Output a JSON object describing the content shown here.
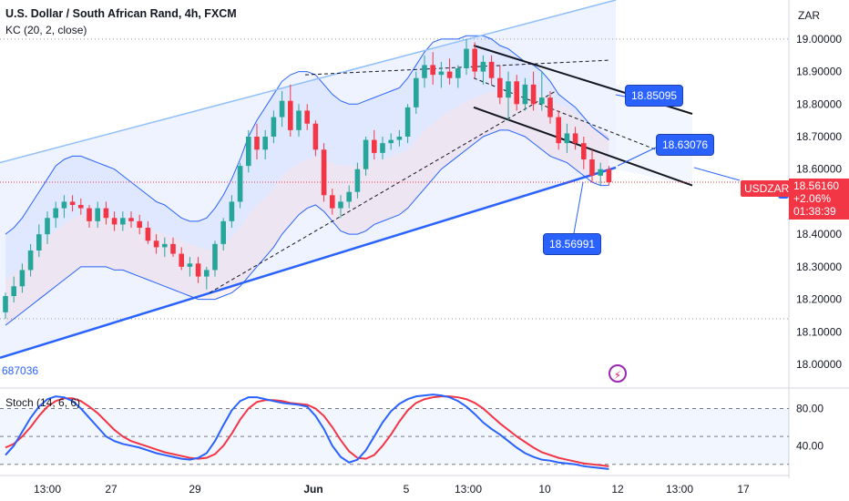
{
  "header": {
    "title": "U.S. Dollar / South African Rand, 4h, FXCM",
    "indicator": "KC (20, 2, close)",
    "currency": "ZAR",
    "left_code": "687036"
  },
  "stoch": {
    "label": "Stoch (14, 6, 6)"
  },
  "callouts": [
    {
      "text": "18.85095"
    },
    {
      "text": "18.63076"
    },
    {
      "text": "18.56991"
    }
  ],
  "price_tag": {
    "symbol": "USDZAR",
    "price": "18.56160",
    "change": "+2.06%",
    "countdown": "01:38:39"
  },
  "icons": {
    "alert": "lightning-bolt-icon"
  },
  "colors": {
    "up": "#26a69a",
    "down": "#f23645",
    "channel": "#2962ff",
    "stoch_k": "#2962ff",
    "stoch_d": "#f23645"
  },
  "chart_data": {
    "type": "candlestick",
    "y_ticks": [
      "19.00000",
      "18.90000",
      "18.80000",
      "18.70000",
      "18.60000",
      "18.40000",
      "18.30000",
      "18.20000",
      "18.10000",
      "18.00000"
    ],
    "ylim": [
      17.93,
      19.12
    ],
    "stoch_ticks": [
      "80.00",
      "40.00"
    ],
    "stoch_ylim": [
      10,
      100
    ],
    "x_ticks": [
      "13:00",
      "27",
      "29",
      "Jun",
      "5",
      "13:00",
      "10",
      "12",
      "13:00",
      "17"
    ],
    "candles": [
      {
        "o": 18.16,
        "h": 18.22,
        "l": 18.14,
        "c": 18.21
      },
      {
        "o": 18.21,
        "h": 18.27,
        "l": 18.19,
        "c": 18.24
      },
      {
        "o": 18.24,
        "h": 18.31,
        "l": 18.22,
        "c": 18.29
      },
      {
        "o": 18.29,
        "h": 18.37,
        "l": 18.27,
        "c": 18.35
      },
      {
        "o": 18.35,
        "h": 18.43,
        "l": 18.33,
        "c": 18.4
      },
      {
        "o": 18.4,
        "h": 18.47,
        "l": 18.37,
        "c": 18.45
      },
      {
        "o": 18.45,
        "h": 18.5,
        "l": 18.42,
        "c": 18.48
      },
      {
        "o": 18.48,
        "h": 18.52,
        "l": 18.45,
        "c": 18.5
      },
      {
        "o": 18.5,
        "h": 18.52,
        "l": 18.47,
        "c": 18.49
      },
      {
        "o": 18.49,
        "h": 18.51,
        "l": 18.46,
        "c": 18.48
      },
      {
        "o": 18.48,
        "h": 18.49,
        "l": 18.42,
        "c": 18.44
      },
      {
        "o": 18.44,
        "h": 18.5,
        "l": 18.42,
        "c": 18.48
      },
      {
        "o": 18.48,
        "h": 18.5,
        "l": 18.43,
        "c": 18.45
      },
      {
        "o": 18.45,
        "h": 18.47,
        "l": 18.41,
        "c": 18.43
      },
      {
        "o": 18.43,
        "h": 18.47,
        "l": 18.41,
        "c": 18.45
      },
      {
        "o": 18.45,
        "h": 18.47,
        "l": 18.42,
        "c": 18.44
      },
      {
        "o": 18.44,
        "h": 18.46,
        "l": 18.4,
        "c": 18.42
      },
      {
        "o": 18.42,
        "h": 18.44,
        "l": 18.37,
        "c": 18.38
      },
      {
        "o": 18.38,
        "h": 18.4,
        "l": 18.34,
        "c": 18.36
      },
      {
        "o": 18.36,
        "h": 18.39,
        "l": 18.33,
        "c": 18.37
      },
      {
        "o": 18.37,
        "h": 18.39,
        "l": 18.33,
        "c": 18.34
      },
      {
        "o": 18.34,
        "h": 18.36,
        "l": 18.29,
        "c": 18.3
      },
      {
        "o": 18.3,
        "h": 18.33,
        "l": 18.27,
        "c": 18.31
      },
      {
        "o": 18.31,
        "h": 18.33,
        "l": 18.25,
        "c": 18.27
      },
      {
        "o": 18.27,
        "h": 18.3,
        "l": 18.23,
        "c": 18.29
      },
      {
        "o": 18.29,
        "h": 18.38,
        "l": 18.27,
        "c": 18.37
      },
      {
        "o": 18.37,
        "h": 18.45,
        "l": 18.35,
        "c": 18.44
      },
      {
        "o": 18.44,
        "h": 18.52,
        "l": 18.42,
        "c": 18.5
      },
      {
        "o": 18.5,
        "h": 18.62,
        "l": 18.48,
        "c": 18.61
      },
      {
        "o": 18.61,
        "h": 18.72,
        "l": 18.59,
        "c": 18.7
      },
      {
        "o": 18.7,
        "h": 18.74,
        "l": 18.63,
        "c": 18.66
      },
      {
        "o": 18.66,
        "h": 18.72,
        "l": 18.63,
        "c": 18.7
      },
      {
        "o": 18.7,
        "h": 18.78,
        "l": 18.68,
        "c": 18.76
      },
      {
        "o": 18.76,
        "h": 18.84,
        "l": 18.73,
        "c": 18.81
      },
      {
        "o": 18.81,
        "h": 18.86,
        "l": 18.7,
        "c": 18.72
      },
      {
        "o": 18.72,
        "h": 18.8,
        "l": 18.7,
        "c": 18.78
      },
      {
        "o": 18.78,
        "h": 18.8,
        "l": 18.72,
        "c": 18.74
      },
      {
        "o": 18.74,
        "h": 18.75,
        "l": 18.64,
        "c": 18.66
      },
      {
        "o": 18.66,
        "h": 18.68,
        "l": 18.5,
        "c": 18.52
      },
      {
        "o": 18.52,
        "h": 18.54,
        "l": 18.46,
        "c": 18.48
      },
      {
        "o": 18.48,
        "h": 18.52,
        "l": 18.45,
        "c": 18.5
      },
      {
        "o": 18.5,
        "h": 18.55,
        "l": 18.48,
        "c": 18.53
      },
      {
        "o": 18.53,
        "h": 18.62,
        "l": 18.51,
        "c": 18.6
      },
      {
        "o": 18.6,
        "h": 18.7,
        "l": 18.58,
        "c": 18.69
      },
      {
        "o": 18.69,
        "h": 18.72,
        "l": 18.63,
        "c": 18.65
      },
      {
        "o": 18.65,
        "h": 18.7,
        "l": 18.63,
        "c": 18.68
      },
      {
        "o": 18.68,
        "h": 18.71,
        "l": 18.66,
        "c": 18.69
      },
      {
        "o": 18.69,
        "h": 18.72,
        "l": 18.67,
        "c": 18.7
      },
      {
        "o": 18.7,
        "h": 18.8,
        "l": 18.68,
        "c": 18.79
      },
      {
        "o": 18.79,
        "h": 18.9,
        "l": 18.77,
        "c": 18.88
      },
      {
        "o": 18.88,
        "h": 18.95,
        "l": 18.85,
        "c": 18.92
      },
      {
        "o": 18.92,
        "h": 18.96,
        "l": 18.86,
        "c": 18.89
      },
      {
        "o": 18.89,
        "h": 18.93,
        "l": 18.85,
        "c": 18.9
      },
      {
        "o": 18.9,
        "h": 18.94,
        "l": 18.86,
        "c": 18.88
      },
      {
        "o": 18.88,
        "h": 18.92,
        "l": 18.85,
        "c": 18.91
      },
      {
        "o": 18.91,
        "h": 19.0,
        "l": 18.89,
        "c": 18.97
      },
      {
        "o": 18.97,
        "h": 18.99,
        "l": 18.88,
        "c": 18.9
      },
      {
        "o": 18.9,
        "h": 18.95,
        "l": 18.86,
        "c": 18.93
      },
      {
        "o": 18.93,
        "h": 18.95,
        "l": 18.86,
        "c": 18.88
      },
      {
        "o": 18.88,
        "h": 18.92,
        "l": 18.8,
        "c": 18.82
      },
      {
        "o": 18.82,
        "h": 18.9,
        "l": 18.75,
        "c": 18.87
      },
      {
        "o": 18.87,
        "h": 18.89,
        "l": 18.78,
        "c": 18.8
      },
      {
        "o": 18.8,
        "h": 18.88,
        "l": 18.78,
        "c": 18.86
      },
      {
        "o": 18.86,
        "h": 18.9,
        "l": 18.78,
        "c": 18.8
      },
      {
        "o": 18.8,
        "h": 18.9,
        "l": 18.78,
        "c": 18.82
      },
      {
        "o": 18.82,
        "h": 18.84,
        "l": 18.74,
        "c": 18.76
      },
      {
        "o": 18.76,
        "h": 18.78,
        "l": 18.66,
        "c": 18.68
      },
      {
        "o": 18.68,
        "h": 18.74,
        "l": 18.65,
        "c": 18.71
      },
      {
        "o": 18.71,
        "h": 18.73,
        "l": 18.66,
        "c": 18.68
      },
      {
        "o": 18.68,
        "h": 18.7,
        "l": 18.6,
        "c": 18.63
      },
      {
        "o": 18.63,
        "h": 18.66,
        "l": 18.56,
        "c": 18.58
      },
      {
        "o": 18.58,
        "h": 18.62,
        "l": 18.55,
        "c": 18.6
      },
      {
        "o": 18.6,
        "h": 18.61,
        "l": 18.55,
        "c": 18.56
      }
    ],
    "kc_upper": [
      18.4,
      18.42,
      18.45,
      18.49,
      18.53,
      18.57,
      18.61,
      18.63,
      18.64,
      18.64,
      18.63,
      18.62,
      18.61,
      18.6,
      18.58,
      18.56,
      18.54,
      18.52,
      18.5,
      18.49,
      18.47,
      18.45,
      18.44,
      18.44,
      18.45,
      18.48,
      18.52,
      18.57,
      18.63,
      18.7,
      18.75,
      18.79,
      18.83,
      18.87,
      18.89,
      18.9,
      18.9,
      18.89,
      18.86,
      18.83,
      18.81,
      18.8,
      18.8,
      18.81,
      18.82,
      18.83,
      18.84,
      18.85,
      18.88,
      18.92,
      18.96,
      18.99,
      19.0,
      19.0,
      19.0,
      19.01,
      19.01,
      19.01,
      19.0,
      18.98,
      18.97,
      18.95,
      18.93,
      18.92,
      18.9,
      18.87,
      18.83,
      18.81,
      18.79,
      18.76,
      18.73,
      18.71,
      18.69
    ],
    "kc_middle": [
      18.26,
      18.28,
      18.3,
      18.33,
      18.36,
      18.39,
      18.41,
      18.43,
      18.45,
      18.46,
      18.46,
      18.46,
      18.46,
      18.45,
      18.44,
      18.44,
      18.43,
      18.42,
      18.41,
      18.4,
      18.39,
      18.38,
      18.37,
      18.36,
      18.35,
      18.36,
      18.37,
      18.39,
      18.42,
      18.46,
      18.49,
      18.51,
      18.54,
      18.58,
      18.6,
      18.62,
      18.63,
      18.64,
      18.63,
      18.62,
      18.61,
      18.61,
      18.61,
      18.62,
      18.63,
      18.63,
      18.64,
      18.65,
      18.66,
      18.69,
      18.72,
      18.74,
      18.76,
      18.78,
      18.79,
      18.81,
      18.82,
      18.83,
      18.84,
      18.84,
      18.84,
      18.84,
      18.84,
      18.83,
      18.83,
      18.81,
      18.8,
      18.79,
      18.77,
      18.75,
      18.73,
      18.72,
      18.7
    ],
    "kc_lower": [
      18.12,
      18.14,
      18.16,
      18.18,
      18.2,
      18.22,
      18.24,
      18.26,
      18.28,
      18.3,
      18.3,
      18.3,
      18.3,
      18.29,
      18.29,
      18.28,
      18.27,
      18.26,
      18.25,
      18.24,
      18.23,
      18.22,
      18.21,
      18.2,
      18.2,
      18.2,
      18.21,
      18.22,
      18.24,
      18.27,
      18.3,
      18.33,
      18.36,
      18.4,
      18.43,
      18.46,
      18.48,
      18.49,
      18.47,
      18.44,
      18.41,
      18.4,
      18.4,
      18.41,
      18.43,
      18.44,
      18.45,
      18.46,
      18.48,
      18.51,
      18.54,
      18.57,
      18.6,
      18.62,
      18.64,
      18.66,
      18.68,
      18.7,
      18.71,
      18.72,
      18.72,
      18.71,
      18.7,
      18.68,
      18.66,
      18.64,
      18.63,
      18.62,
      18.6,
      18.58,
      18.56,
      18.55,
      18.55
    ],
    "stoch_k": [
      30,
      40,
      55,
      70,
      82,
      90,
      93,
      92,
      88,
      80,
      70,
      60,
      50,
      45,
      42,
      40,
      38,
      35,
      32,
      30,
      28,
      26,
      25,
      27,
      32,
      45,
      62,
      78,
      88,
      92,
      92,
      90,
      88,
      86,
      85,
      84,
      82,
      72,
      58,
      40,
      28,
      22,
      25,
      35,
      50,
      65,
      77,
      85,
      90,
      93,
      94,
      95,
      94,
      92,
      88,
      82,
      74,
      65,
      58,
      52,
      45,
      38,
      32,
      28,
      25,
      24,
      22,
      21,
      20,
      18,
      17,
      16,
      15
    ],
    "stoch_d": [
      38,
      42,
      50,
      60,
      72,
      82,
      88,
      91,
      91,
      88,
      82,
      75,
      66,
      57,
      50,
      45,
      42,
      39,
      36,
      33,
      31,
      29,
      27,
      26,
      27,
      31,
      40,
      53,
      68,
      80,
      87,
      89,
      89,
      88,
      86,
      85,
      84,
      80,
      72,
      60,
      46,
      34,
      27,
      26,
      30,
      40,
      52,
      66,
      78,
      86,
      90,
      92,
      93,
      93,
      92,
      90,
      86,
      80,
      72,
      64,
      57,
      50,
      44,
      38,
      33,
      30,
      27,
      25,
      23,
      21,
      20,
      19,
      18
    ]
  }
}
